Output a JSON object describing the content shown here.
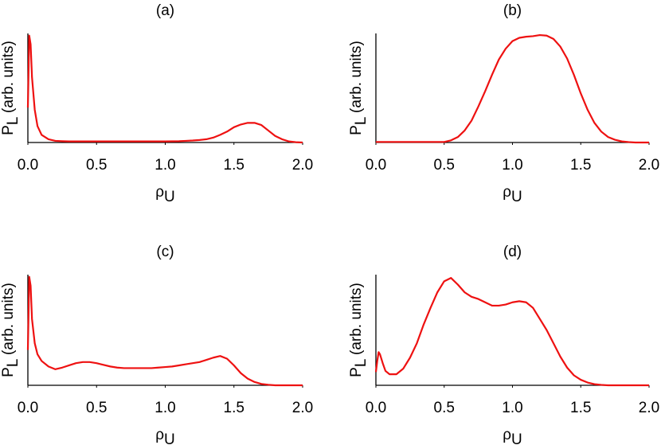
{
  "chart_data": [
    {
      "type": "line",
      "title": "(a)",
      "xlabel": [
        "ρ",
        "U"
      ],
      "ylabel": [
        "P",
        "L",
        " (arb. units)"
      ],
      "color": "#ee1111",
      "grid": false,
      "xlim": [
        0,
        2
      ],
      "ylim": [
        0,
        1
      ],
      "xticks": [
        {
          "value": 0,
          "label": "0.0"
        },
        0.5,
        {
          "value": 1,
          "label": "1.0"
        },
        1.5,
        {
          "value": 2,
          "label": "2.0"
        }
      ],
      "x": [
        0,
        0.01,
        0.02,
        0.03,
        0.05,
        0.07,
        0.1,
        0.15,
        0.2,
        0.25,
        0.3,
        0.35,
        0.4,
        0.45,
        0.5,
        0.55,
        0.6,
        0.65,
        0.7,
        0.75,
        0.8,
        0.85,
        0.9,
        0.95,
        1,
        1.05,
        1.1,
        1.15,
        1.2,
        1.25,
        1.3,
        1.35,
        1.4,
        1.45,
        1.5,
        1.55,
        1.6,
        1.65,
        1.7,
        1.75,
        1.8,
        1.85,
        1.9,
        1.95,
        2
      ],
      "values": [
        0.32,
        0.98,
        0.9,
        0.6,
        0.3,
        0.15,
        0.07,
        0.03,
        0.015,
        0.012,
        0.01,
        0.01,
        0.01,
        0.01,
        0.01,
        0.01,
        0.01,
        0.01,
        0.01,
        0.01,
        0.01,
        0.01,
        0.01,
        0.01,
        0.01,
        0.011,
        0.012,
        0.015,
        0.018,
        0.023,
        0.03,
        0.045,
        0.07,
        0.1,
        0.14,
        0.165,
        0.18,
        0.18,
        0.16,
        0.11,
        0.06,
        0.03,
        0.01,
        0.003,
        0
      ]
    },
    {
      "type": "line",
      "title": "(b)",
      "xlabel": [
        "ρ",
        "U"
      ],
      "ylabel": [
        "P",
        "L",
        " (arb. units)"
      ],
      "color": "#ee1111",
      "grid": false,
      "xlim": [
        0,
        2
      ],
      "ylim": [
        0,
        1
      ],
      "xticks": [
        {
          "value": 0,
          "label": "0.0"
        },
        0.5,
        {
          "value": 1,
          "label": "1.0"
        },
        1.5,
        {
          "value": 2,
          "label": "2.0"
        }
      ],
      "x": [
        0,
        0.01,
        0.02,
        0.03,
        0.05,
        0.07,
        0.1,
        0.15,
        0.2,
        0.25,
        0.3,
        0.35,
        0.4,
        0.45,
        0.5,
        0.55,
        0.6,
        0.65,
        0.7,
        0.75,
        0.8,
        0.85,
        0.9,
        0.95,
        1,
        1.05,
        1.1,
        1.15,
        1.2,
        1.25,
        1.3,
        1.35,
        1.4,
        1.45,
        1.5,
        1.55,
        1.6,
        1.65,
        1.7,
        1.75,
        1.8,
        1.85,
        1.9,
        1.95,
        2
      ],
      "values": [
        0.005,
        0.005,
        0.005,
        0.005,
        0.005,
        0.005,
        0.005,
        0.005,
        0.005,
        0.005,
        0.005,
        0.005,
        0.005,
        0.005,
        0.005,
        0.02,
        0.05,
        0.11,
        0.2,
        0.33,
        0.47,
        0.62,
        0.76,
        0.86,
        0.93,
        0.96,
        0.97,
        0.975,
        0.985,
        0.98,
        0.95,
        0.88,
        0.77,
        0.62,
        0.45,
        0.3,
        0.18,
        0.1,
        0.05,
        0.025,
        0.01,
        0.004,
        0,
        0,
        0
      ]
    },
    {
      "type": "line",
      "title": "(c)",
      "xlabel": [
        "ρ",
        "U"
      ],
      "ylabel": [
        "P",
        "L",
        " (arb. units)"
      ],
      "color": "#ee1111",
      "grid": false,
      "xlim": [
        0,
        2
      ],
      "ylim": [
        0,
        1
      ],
      "xticks": [
        {
          "value": 0,
          "label": "0.0"
        },
        0.5,
        {
          "value": 1,
          "label": "1.0"
        },
        1.5,
        {
          "value": 2,
          "label": "2.0"
        }
      ],
      "x": [
        0,
        0.01,
        0.02,
        0.03,
        0.05,
        0.07,
        0.1,
        0.15,
        0.2,
        0.25,
        0.3,
        0.35,
        0.4,
        0.45,
        0.5,
        0.55,
        0.6,
        0.65,
        0.7,
        0.75,
        0.8,
        0.85,
        0.9,
        0.95,
        1,
        1.05,
        1.1,
        1.15,
        1.2,
        1.25,
        1.3,
        1.35,
        1.4,
        1.45,
        1.5,
        1.55,
        1.6,
        1.65,
        1.7,
        1.75,
        1.8,
        1.85,
        1.9,
        1.95,
        2
      ],
      "values": [
        0.32,
        0.98,
        0.9,
        0.6,
        0.38,
        0.28,
        0.22,
        0.17,
        0.145,
        0.16,
        0.18,
        0.2,
        0.21,
        0.21,
        0.2,
        0.185,
        0.17,
        0.16,
        0.155,
        0.155,
        0.155,
        0.155,
        0.155,
        0.16,
        0.165,
        0.17,
        0.18,
        0.19,
        0.2,
        0.21,
        0.23,
        0.25,
        0.265,
        0.24,
        0.18,
        0.11,
        0.06,
        0.03,
        0.012,
        0.005,
        0,
        0,
        0,
        0,
        0
      ]
    },
    {
      "type": "line",
      "title": "(d)",
      "xlabel": [
        "ρ",
        "U"
      ],
      "ylabel": [
        "P",
        "L",
        " (arb. units)"
      ],
      "color": "#ee1111",
      "grid": false,
      "xlim": [
        0,
        2
      ],
      "ylim": [
        0,
        1
      ],
      "xticks": [
        {
          "value": 0,
          "label": "0.0"
        },
        0.5,
        {
          "value": 1,
          "label": "1.0"
        },
        1.5,
        {
          "value": 2,
          "label": "2.0"
        }
      ],
      "x": [
        0,
        0.01,
        0.02,
        0.03,
        0.05,
        0.07,
        0.1,
        0.15,
        0.2,
        0.25,
        0.3,
        0.35,
        0.4,
        0.45,
        0.5,
        0.55,
        0.6,
        0.65,
        0.7,
        0.75,
        0.8,
        0.85,
        0.9,
        0.95,
        1,
        1.05,
        1.1,
        1.15,
        1.2,
        1.25,
        1.3,
        1.35,
        1.4,
        1.45,
        1.5,
        1.55,
        1.6,
        1.65,
        1.7,
        1.75,
        1.8,
        1.85,
        1.9,
        1.95,
        2
      ],
      "values": [
        0.12,
        0.22,
        0.3,
        0.28,
        0.2,
        0.13,
        0.1,
        0.1,
        0.15,
        0.25,
        0.38,
        0.55,
        0.7,
        0.84,
        0.94,
        0.97,
        0.91,
        0.84,
        0.8,
        0.78,
        0.75,
        0.72,
        0.72,
        0.73,
        0.75,
        0.76,
        0.75,
        0.7,
        0.6,
        0.5,
        0.38,
        0.26,
        0.16,
        0.09,
        0.05,
        0.025,
        0.01,
        0.004,
        0,
        0,
        0,
        0,
        0,
        0,
        0
      ]
    }
  ]
}
